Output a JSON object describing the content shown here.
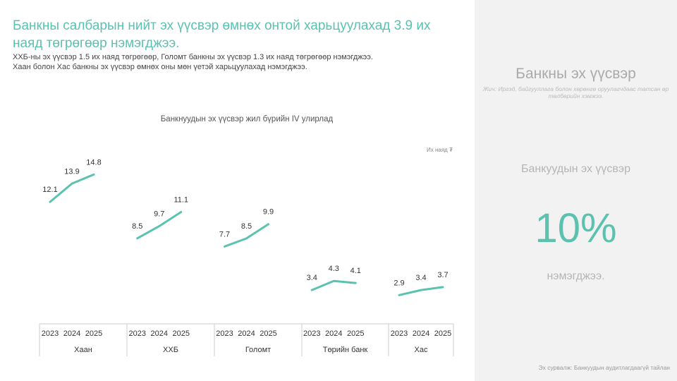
{
  "header": {
    "title": "Банкны салбарын нийт эх үүсвэр өмнөх онтой харьцуулахад 3.9 их наяд төгрөгөөр нэмэгджээ.",
    "line1": "ХХБ-ны эх үүсвэр 1.5 их наяд төгрөгөөр, Голомт банкны эх үүсвэр 1.3 их наяд төгрөгөөр нэмэгджээ.",
    "line2": "Хаан болон Хас банкны эх үүсвэр өмнөх оны мөн үетэй харьцуулахад нэмэгджээ."
  },
  "chart_data": {
    "type": "line",
    "title": "Банкнуудын эх үүсвэр жил бүрийн IV улирлад",
    "unit": "Их наяд ₮",
    "years": [
      "2023",
      "2024",
      "2025"
    ],
    "line_color": "#5bc2b0",
    "groups": [
      {
        "name": "Хаан",
        "values": [
          12.1,
          13.9,
          14.8
        ],
        "labels": [
          "12.1",
          "13.9",
          "14.8"
        ]
      },
      {
        "name": "ХХБ",
        "values": [
          8.5,
          9.7,
          11.1
        ],
        "labels": [
          "8.5",
          "9.7",
          "11.1"
        ]
      },
      {
        "name": "Голомт",
        "values": [
          7.7,
          8.5,
          9.9
        ],
        "labels": [
          "7.7",
          "8.5",
          "9.9"
        ]
      },
      {
        "name": "Төрийн банк",
        "values": [
          3.4,
          4.3,
          4.1
        ],
        "labels": [
          "3.4",
          "4.3",
          "4.1"
        ]
      },
      {
        "name": "Хас",
        "values": [
          2.9,
          3.4,
          3.7
        ],
        "labels": [
          "2.9",
          "3.4",
          "3.7"
        ]
      }
    ]
  },
  "side": {
    "title": "Банкны эх үүсвэр",
    "note": "Жич: Иргэд, байгууллага болон хөрөнгө оруулагчдаас татсан өр төлбөрийн хэмжээ.",
    "label": "Банкуудын эх үүсвэр",
    "value": "10%",
    "caption": "нэмэгджээ.",
    "source": "Эх сурвалж: Банкуудын аудитлагдаагүй тайлан"
  }
}
